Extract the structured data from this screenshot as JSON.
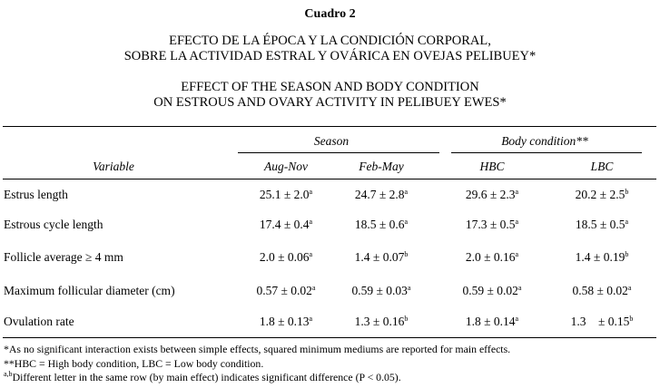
{
  "cuadro": "Cuadro 2",
  "title_es": [
    "EFECTO DE LA ÉPOCA Y LA CONDICIÓN CORPORAL,",
    "SOBRE LA ACTIVIDAD ESTRAL Y OVÁRICA EN OVEJAS PELIBUEY*"
  ],
  "title_en": [
    "EFFECT OF THE SEASON AND BODY CONDITION",
    "ON ESTROUS AND OVARY ACTIVITY IN PELIBUEY EWES*"
  ],
  "group_headers": {
    "season": "Season",
    "body_condition": "Body condition**"
  },
  "columns": {
    "variable": "Variable",
    "aug_nov": "Aug-Nov",
    "feb_may": "Feb-May",
    "hbc": "HBC",
    "lbc": "LBC"
  },
  "rows": [
    {
      "variable": "Estrus length",
      "cells": [
        {
          "v": "25.1 ± 2.0",
          "s": "a"
        },
        {
          "v": "24.7 ± 2.8",
          "s": "a"
        },
        {
          "v": "29.6 ± 2.3",
          "s": "a"
        },
        {
          "v": "20.2 ± 2.5",
          "s": "b"
        }
      ]
    },
    {
      "variable": "Estrous cycle length",
      "cells": [
        {
          "v": "17.4 ± 0.4",
          "s": "a"
        },
        {
          "v": "18.5 ± 0.6",
          "s": "a"
        },
        {
          "v": "17.3 ± 0.5",
          "s": "a"
        },
        {
          "v": "18.5 ± 0.5",
          "s": "a"
        }
      ]
    },
    {
      "variable": "Follicle average ≥ 4 mm",
      "cells": [
        {
          "v": "2.0 ± 0.06",
          "s": "a"
        },
        {
          "v": "1.4 ± 0.07",
          "s": "b"
        },
        {
          "v": "2.0 ± 0.16",
          "s": "a"
        },
        {
          "v": "1.4 ± 0.19",
          "s": "b"
        }
      ]
    },
    {
      "variable": "Maximum follicular diameter (cm)",
      "cells": [
        {
          "v": "0.57 ± 0.02",
          "s": "a"
        },
        {
          "v": "0.59 ± 0.03",
          "s": "a"
        },
        {
          "v": "0.59 ± 0.02",
          "s": "a"
        },
        {
          "v": "0.58 ± 0.02",
          "s": "a"
        }
      ]
    },
    {
      "variable": "Ovulation rate",
      "cells": [
        {
          "v": "1.8 ± 0.13",
          "s": "a"
        },
        {
          "v": "1.3 ± 0.16",
          "s": "b"
        },
        {
          "v": "1.8 ± 0.14",
          "s": "a"
        },
        {
          "v": "1.3    ± 0.15",
          "s": "b"
        }
      ]
    }
  ],
  "notes": {
    "n1": "*As no significant interaction exists between simple effects, squared minimum mediums are reported for main effects.",
    "n2": "**HBC = High body condition, LBC = Low body condition.",
    "n3_sup": "a,b",
    "n3": "Different letter in the same row (by main effect) indicates significant difference (P < 0.05)."
  }
}
